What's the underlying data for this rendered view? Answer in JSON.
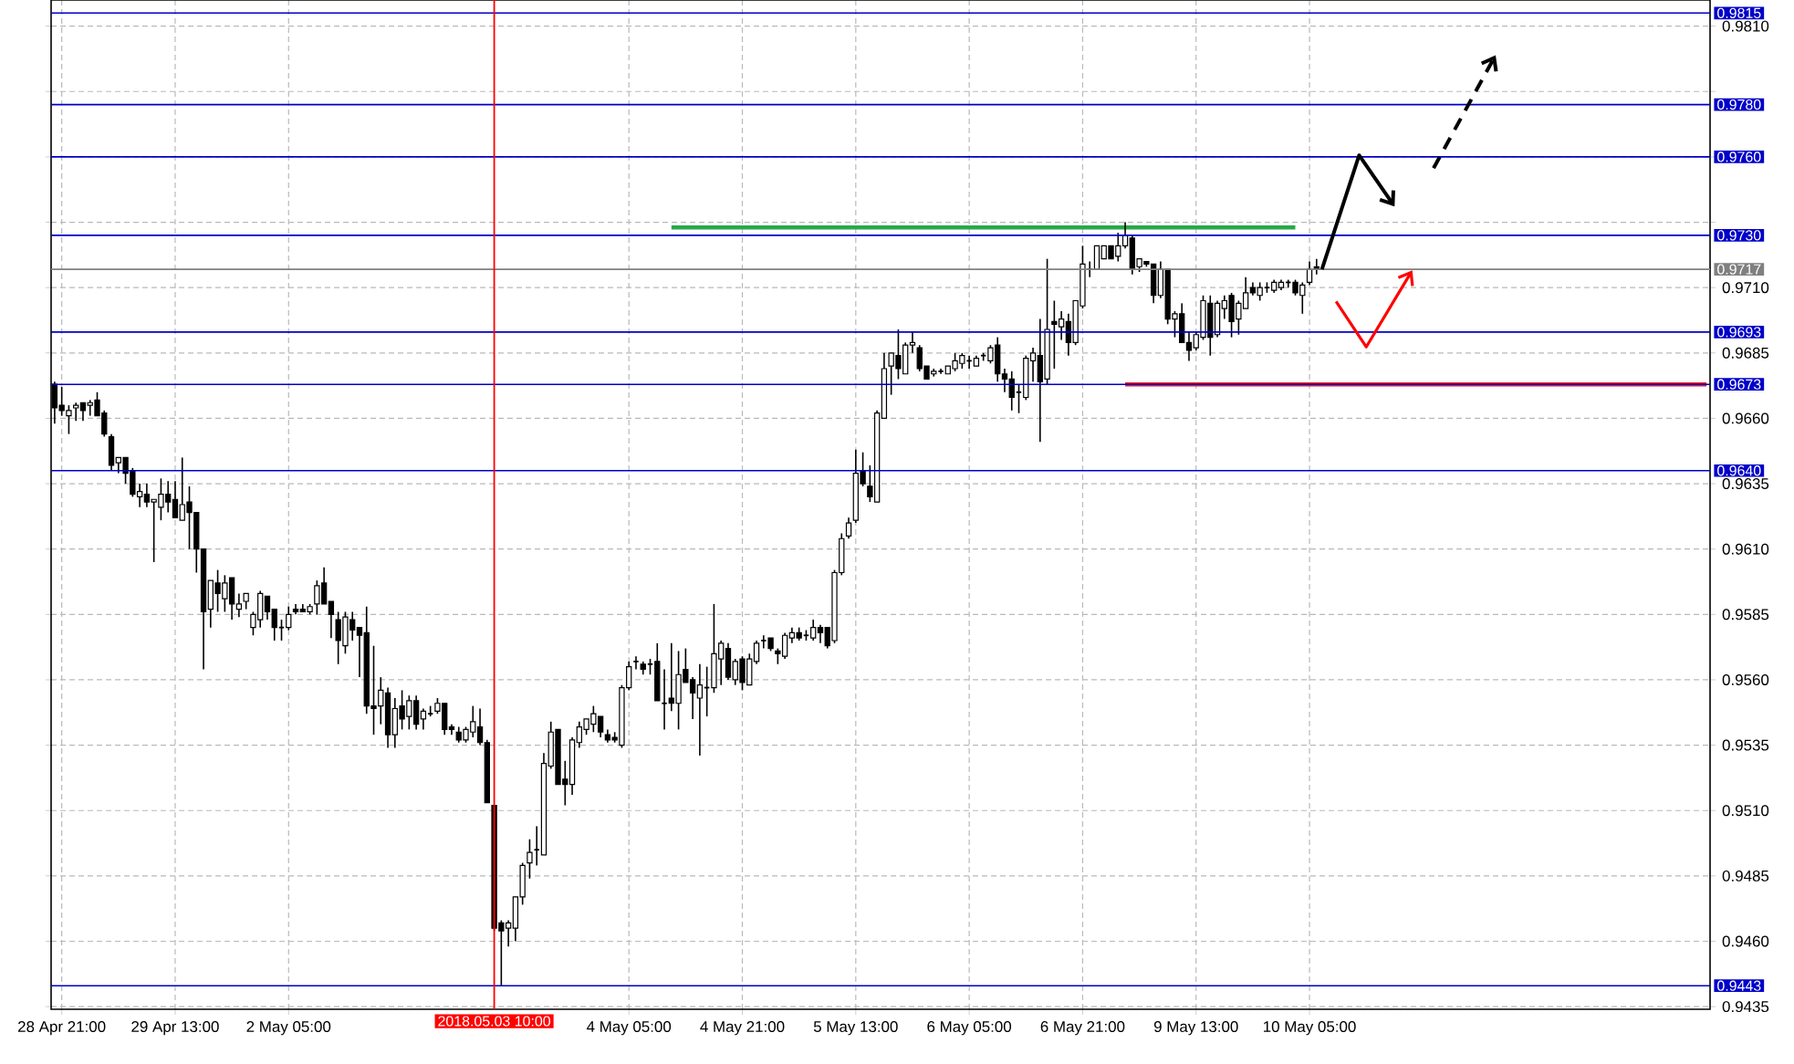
{
  "chart_data": {
    "type": "candlestick",
    "color": "#000000",
    "categories": [
      null,
      "28 Apr 21:00",
      null,
      null,
      null,
      null,
      null,
      null,
      null,
      null,
      null,
      null,
      null,
      null,
      null,
      null,
      null,
      "29 Apr 13:00",
      null,
      null,
      null,
      null,
      null,
      null,
      null,
      null,
      null,
      null,
      null,
      null,
      null,
      null,
      null,
      "2 May 05:00",
      null,
      null,
      null,
      null,
      null,
      null,
      null,
      null,
      null,
      null,
      null,
      null,
      null,
      null,
      null,
      null,
      null,
      null,
      null,
      null,
      null,
      null,
      null,
      null,
      null,
      null,
      null,
      null,
      "2018.05.03 10:00",
      null,
      null,
      null,
      null,
      null,
      null,
      null,
      null,
      null,
      null,
      null,
      null,
      null,
      null,
      null,
      null,
      null,
      null,
      "4 May 05:00",
      null,
      null,
      null,
      null,
      null,
      null,
      null,
      null,
      null,
      null,
      null,
      null,
      null,
      null,
      null,
      "4 May 21:00",
      null,
      null,
      null,
      null,
      null,
      null,
      null,
      null,
      null,
      null,
      null,
      null,
      null,
      null,
      null,
      "5 May 13:00",
      null,
      null,
      null,
      null,
      null,
      null,
      null,
      null,
      null,
      null,
      null,
      null,
      null,
      null,
      null,
      "6 May 05:00",
      null,
      null,
      null,
      null,
      null,
      null,
      null,
      null,
      null,
      null,
      null,
      null,
      null,
      null,
      null,
      "6 May 21:00",
      null,
      null,
      null,
      null,
      null,
      null,
      null,
      null,
      null,
      null,
      null,
      null,
      null,
      null,
      null,
      "9 May 13:00",
      null,
      null,
      null,
      null,
      null,
      null,
      null,
      null,
      null,
      null,
      null,
      null,
      null,
      null,
      null,
      "10 May 05:00",
      null,
      null,
      null,
      null,
      null,
      null,
      null,
      null,
      null,
      null,
      null,
      null,
      null,
      null,
      null,
      null,
      null,
      null,
      null,
      null,
      null,
      null,
      null,
      null,
      null,
      null,
      null,
      null,
      null,
      null,
      null,
      null,
      null,
      null,
      null,
      null,
      null,
      null,
      null,
      null,
      null,
      null,
      null,
      null,
      null,
      null,
      null,
      null,
      null,
      null,
      null,
      null,
      null,
      null,
      null,
      null
    ],
    "ohlc": [
      [
        0.9673,
        0.9674,
        0.9658,
        0.9664
      ],
      [
        0.9665,
        0.9672,
        0.9661,
        0.9663
      ],
      [
        0.9661,
        0.9665,
        0.9654,
        0.9663
      ],
      [
        0.9664,
        0.9666,
        0.9659,
        0.9665
      ],
      [
        0.9666,
        0.9666,
        0.9659,
        0.9663
      ],
      [
        0.9665,
        0.9667,
        0.9661,
        0.9666
      ],
      [
        0.9667,
        0.967,
        0.9661,
        0.9661
      ],
      [
        0.9662,
        0.9663,
        0.9653,
        0.9654
      ],
      [
        0.9653,
        0.9654,
        0.964,
        0.9642
      ],
      [
        0.9643,
        0.9645,
        0.9639,
        0.9645
      ],
      [
        0.9645,
        0.9645,
        0.9635,
        0.9639
      ],
      [
        0.964,
        0.9641,
        0.963,
        0.9631
      ],
      [
        0.963,
        0.9635,
        0.9626,
        0.9632
      ],
      [
        0.9631,
        0.9635,
        0.9626,
        0.9628
      ],
      [
        0.9628,
        0.9629,
        0.9605,
        0.9629
      ],
      [
        0.9626,
        0.9637,
        0.9621,
        0.9631
      ],
      [
        0.9631,
        0.9636,
        0.9624,
        0.9628
      ],
      [
        0.9629,
        0.9636,
        0.9622,
        0.9622
      ],
      [
        0.9621,
        0.9645,
        0.9621,
        0.9627
      ],
      [
        0.9628,
        0.9634,
        0.961,
        0.9624
      ],
      [
        0.9624,
        0.9624,
        0.9601,
        0.961
      ],
      [
        0.961,
        0.961,
        0.9564,
        0.9586
      ],
      [
        0.9587,
        0.9598,
        0.958,
        0.9598
      ],
      [
        0.9597,
        0.9602,
        0.9586,
        0.9593
      ],
      [
        0.9591,
        0.96,
        0.9586,
        0.9597
      ],
      [
        0.9599,
        0.9599,
        0.9583,
        0.9589
      ],
      [
        0.9587,
        0.9593,
        0.9584,
        0.9589
      ],
      [
        0.959,
        0.9593,
        0.9587,
        0.9593
      ],
      [
        0.958,
        0.9586,
        0.9577,
        0.9585
      ],
      [
        0.9583,
        0.9594,
        0.958,
        0.9593
      ],
      [
        0.9592,
        0.9592,
        0.9583,
        0.9586
      ],
      [
        0.9587,
        0.9587,
        0.9575,
        0.958
      ],
      [
        0.958,
        0.9583,
        0.9575,
        0.958
      ],
      [
        0.958,
        0.9588,
        0.9579,
        0.9585
      ],
      [
        0.9587,
        0.9589,
        0.9585,
        0.9586
      ],
      [
        0.9587,
        0.9589,
        0.9586,
        0.9586
      ],
      [
        0.9586,
        0.9589,
        0.9585,
        0.9588
      ],
      [
        0.9589,
        0.9598,
        0.9585,
        0.9596
      ],
      [
        0.9597,
        0.9603,
        0.9589,
        0.9589
      ],
      [
        0.959,
        0.959,
        0.9576,
        0.9585
      ],
      [
        0.9583,
        0.9586,
        0.9566,
        0.9575
      ],
      [
        0.9573,
        0.9586,
        0.957,
        0.9584
      ],
      [
        0.9583,
        0.9586,
        0.9575,
        0.9579
      ],
      [
        0.958,
        0.958,
        0.9561,
        0.9577
      ],
      [
        0.9578,
        0.9588,
        0.9547,
        0.955
      ],
      [
        0.955,
        0.9573,
        0.9539,
        0.9549
      ],
      [
        0.955,
        0.9561,
        0.9543,
        0.9556
      ],
      [
        0.9555,
        0.9557,
        0.9534,
        0.9539
      ],
      [
        0.9539,
        0.9553,
        0.9534,
        0.9549
      ],
      [
        0.955,
        0.9556,
        0.9541,
        0.9545
      ],
      [
        0.9546,
        0.9554,
        0.9541,
        0.9552
      ],
      [
        0.9552,
        0.9554,
        0.9541,
        0.9543
      ],
      [
        0.9545,
        0.9549,
        0.9541,
        0.9548
      ],
      [
        0.9547,
        0.955,
        0.9546,
        0.9547
      ],
      [
        0.9548,
        0.9553,
        0.9547,
        0.9551
      ],
      [
        0.9551,
        0.9551,
        0.9539,
        0.9541
      ],
      [
        0.9542,
        0.9543,
        0.9539,
        0.9541
      ],
      [
        0.954,
        0.9542,
        0.9536,
        0.9537
      ],
      [
        0.9537,
        0.9542,
        0.9536,
        0.9541
      ],
      [
        0.954,
        0.955,
        0.9538,
        0.9544
      ],
      [
        0.9542,
        0.9549,
        0.9535,
        0.9536
      ],
      [
        0.9536,
        0.9537,
        0.9513,
        0.9513
      ],
      [
        0.9512,
        0.9512,
        0.9464,
        0.9465
      ],
      [
        0.9467,
        0.9468,
        0.9443,
        0.9464
      ],
      [
        0.9465,
        0.9468,
        0.9458,
        0.9467
      ],
      [
        0.9465,
        0.9477,
        0.946,
        0.9477
      ],
      [
        0.9477,
        0.949,
        0.9474,
        0.9489
      ],
      [
        0.949,
        0.9499,
        0.9484,
        0.9494
      ],
      [
        0.9495,
        0.9504,
        0.9489,
        0.9495
      ],
      [
        0.9493,
        0.9532,
        0.9493,
        0.9528
      ],
      [
        0.9527,
        0.9544,
        0.9526,
        0.954
      ],
      [
        0.9541,
        0.9541,
        0.952,
        0.952
      ],
      [
        0.9522,
        0.9529,
        0.9512,
        0.952
      ],
      [
        0.952,
        0.9538,
        0.9516,
        0.9537
      ],
      [
        0.9536,
        0.9544,
        0.9534,
        0.9542
      ],
      [
        0.9541,
        0.9545,
        0.9539,
        0.9545
      ],
      [
        0.9543,
        0.955,
        0.954,
        0.9547
      ],
      [
        0.9546,
        0.9546,
        0.9538,
        0.954
      ],
      [
        0.9539,
        0.9541,
        0.9536,
        0.9537
      ],
      [
        0.9538,
        0.954,
        0.9536,
        0.9537
      ],
      [
        0.9535,
        0.9558,
        0.9534,
        0.9557
      ],
      [
        0.9557,
        0.9567,
        0.9556,
        0.9565
      ],
      [
        0.9567,
        0.9569,
        0.9564,
        0.9567
      ],
      [
        0.9566,
        0.9567,
        0.9562,
        0.9564
      ],
      [
        0.9566,
        0.9568,
        0.9562,
        0.9566
      ],
      [
        0.9567,
        0.9574,
        0.9552,
        0.9552
      ],
      [
        0.9551,
        0.9564,
        0.9541,
        0.9551
      ],
      [
        0.9553,
        0.9574,
        0.9548,
        0.9551
      ],
      [
        0.9551,
        0.9571,
        0.9541,
        0.9562
      ],
      [
        0.9564,
        0.9572,
        0.9559,
        0.9559
      ],
      [
        0.956,
        0.9561,
        0.9545,
        0.9555
      ],
      [
        0.9553,
        0.9566,
        0.9531,
        0.9558
      ],
      [
        0.9557,
        0.9565,
        0.9546,
        0.9557
      ],
      [
        0.9557,
        0.9589,
        0.9555,
        0.957
      ],
      [
        0.9568,
        0.9575,
        0.9558,
        0.9574
      ],
      [
        0.9572,
        0.9574,
        0.956,
        0.9561
      ],
      [
        0.956,
        0.9568,
        0.9558,
        0.9567
      ],
      [
        0.9568,
        0.9569,
        0.9556,
        0.9559
      ],
      [
        0.9558,
        0.957,
        0.9558,
        0.9568
      ],
      [
        0.9567,
        0.9575,
        0.9566,
        0.9574
      ],
      [
        0.9575,
        0.9577,
        0.9572,
        0.9575
      ],
      [
        0.9576,
        0.9576,
        0.9571,
        0.9572
      ],
      [
        0.9571,
        0.9572,
        0.9566,
        0.957
      ],
      [
        0.9569,
        0.9578,
        0.9568,
        0.9577
      ],
      [
        0.9576,
        0.958,
        0.9574,
        0.9578
      ],
      [
        0.9578,
        0.958,
        0.9575,
        0.9576
      ],
      [
        0.9577,
        0.9579,
        0.9575,
        0.9577
      ],
      [
        0.9576,
        0.9583,
        0.9575,
        0.958
      ],
      [
        0.958,
        0.9581,
        0.9574,
        0.9578
      ],
      [
        0.958,
        0.958,
        0.9572,
        0.9573
      ],
      [
        0.9575,
        0.9602,
        0.9574,
        0.9601
      ],
      [
        0.9601,
        0.9616,
        0.96,
        0.9614
      ],
      [
        0.9615,
        0.9622,
        0.9614,
        0.962
      ],
      [
        0.9621,
        0.9648,
        0.962,
        0.9639
      ],
      [
        0.964,
        0.9647,
        0.9634,
        0.9635
      ],
      [
        0.9634,
        0.9642,
        0.9628,
        0.963
      ],
      [
        0.9628,
        0.9663,
        0.9628,
        0.9662
      ],
      [
        0.966,
        0.9685,
        0.966,
        0.9679
      ],
      [
        0.968,
        0.9685,
        0.9669,
        0.9685
      ],
      [
        0.9684,
        0.9694,
        0.9675,
        0.9679
      ],
      [
        0.9677,
        0.9689,
        0.9677,
        0.9688
      ],
      [
        0.9688,
        0.9693,
        0.9685,
        0.9689
      ],
      [
        0.9687,
        0.9688,
        0.9678,
        0.9679
      ],
      [
        0.968,
        0.968,
        0.9675,
        0.9675
      ],
      [
        0.9677,
        0.9679,
        0.9676,
        0.9678
      ],
      [
        0.9678,
        0.9679,
        0.9677,
        0.9678
      ],
      [
        0.9677,
        0.968,
        0.9677,
        0.968
      ],
      [
        0.9679,
        0.9685,
        0.9678,
        0.9682
      ],
      [
        0.9681,
        0.9685,
        0.9679,
        0.9684
      ],
      [
        0.9682,
        0.9684,
        0.9679,
        0.9682
      ],
      [
        0.968,
        0.9684,
        0.968,
        0.9683
      ],
      [
        0.9684,
        0.9685,
        0.9682,
        0.9684
      ],
      [
        0.9682,
        0.9688,
        0.9681,
        0.9687
      ],
      [
        0.9688,
        0.9691,
        0.9674,
        0.9677
      ],
      [
        0.9677,
        0.9679,
        0.967,
        0.9675
      ],
      [
        0.9675,
        0.9678,
        0.9663,
        0.9668
      ],
      [
        0.967,
        0.9673,
        0.9662,
        0.967
      ],
      [
        0.9668,
        0.9684,
        0.9667,
        0.9683
      ],
      [
        0.9682,
        0.9687,
        0.9674,
        0.9685
      ],
      [
        0.9684,
        0.9698,
        0.9651,
        0.9674
      ],
      [
        0.9675,
        0.9721,
        0.9673,
        0.9694
      ],
      [
        0.9697,
        0.9705,
        0.9679,
        0.9696
      ],
      [
        0.9695,
        0.9701,
        0.969,
        0.9698
      ],
      [
        0.9697,
        0.97,
        0.9684,
        0.9689
      ],
      [
        0.9689,
        0.9705,
        0.9688,
        0.9705
      ],
      [
        0.9703,
        0.9726,
        0.9702,
        0.9719
      ],
      [
        0.9717,
        0.972,
        0.9714,
        0.9717
      ],
      [
        0.9717,
        0.9726,
        0.9717,
        0.9726
      ],
      [
        0.9721,
        0.9726,
        0.9721,
        0.9726
      ],
      [
        0.9726,
        0.9726,
        0.9721,
        0.9721
      ],
      [
        0.9722,
        0.9731,
        0.972,
        0.9726
      ],
      [
        0.9726,
        0.9735,
        0.9725,
        0.973
      ],
      [
        0.9729,
        0.973,
        0.9715,
        0.9717
      ],
      [
        0.9718,
        0.9721,
        0.9716,
        0.9721
      ],
      [
        0.972,
        0.972,
        0.9718,
        0.9719
      ],
      [
        0.9719,
        0.9719,
        0.9704,
        0.9707
      ],
      [
        0.9707,
        0.972,
        0.9706,
        0.9717
      ],
      [
        0.9717,
        0.9717,
        0.9696,
        0.9698
      ],
      [
        0.9698,
        0.9701,
        0.9691,
        0.97
      ],
      [
        0.97,
        0.9704,
        0.9689,
        0.9689
      ],
      [
        0.9689,
        0.9693,
        0.9682,
        0.9686
      ],
      [
        0.9687,
        0.9693,
        0.9686,
        0.9692
      ],
      [
        0.9691,
        0.9707,
        0.969,
        0.9705
      ],
      [
        0.9704,
        0.9707,
        0.9684,
        0.9691
      ],
      [
        0.9692,
        0.9705,
        0.9691,
        0.9704
      ],
      [
        0.9702,
        0.9707,
        0.9698,
        0.9705
      ],
      [
        0.9707,
        0.9708,
        0.9691,
        0.9697
      ],
      [
        0.9698,
        0.9705,
        0.9692,
        0.9704
      ],
      [
        0.9702,
        0.9714,
        0.9702,
        0.9708
      ],
      [
        0.971,
        0.9712,
        0.9707,
        0.9708
      ],
      [
        0.9707,
        0.9712,
        0.9705,
        0.971
      ],
      [
        0.971,
        0.9712,
        0.9708,
        0.971
      ],
      [
        0.9709,
        0.9713,
        0.9708,
        0.9712
      ],
      [
        0.971,
        0.9713,
        0.9709,
        0.9712
      ],
      [
        0.9712,
        0.9713,
        0.971,
        0.9712
      ],
      [
        0.9712,
        0.9713,
        0.9707,
        0.9708
      ],
      [
        0.9707,
        0.9712,
        0.97,
        0.9711
      ],
      [
        0.9712,
        0.972,
        0.9711,
        0.9717
      ],
      [
        0.9718,
        0.9721,
        0.9715,
        0.9717
      ],
      null,
      null,
      null,
      null,
      null,
      null,
      null,
      null,
      null,
      null,
      null,
      null,
      null,
      null,
      null,
      null,
      null,
      null,
      null,
      null,
      null,
      null,
      null,
      null,
      null,
      null,
      null,
      null,
      null,
      null,
      null,
      null,
      null,
      null,
      null,
      null,
      null,
      null,
      null,
      null,
      null,
      null,
      null,
      null,
      null,
      null,
      null,
      null,
      null,
      null,
      null,
      null,
      null,
      null,
      null
    ],
    "series": [
      {
        "type": "line",
        "color": "#2aa84a",
        "values": [
          null,
          null,
          null,
          null,
          null,
          null,
          null,
          null,
          null,
          null,
          null,
          null,
          null,
          null,
          null,
          null,
          null,
          null,
          null,
          null,
          null,
          null,
          null,
          null,
          null,
          null,
          null,
          null,
          null,
          null,
          null,
          null,
          null,
          null,
          null,
          null,
          null,
          null,
          null,
          null,
          null,
          null,
          null,
          null,
          null,
          null,
          null,
          null,
          null,
          null,
          null,
          null,
          null,
          null,
          null,
          null,
          null,
          null,
          null,
          null,
          null,
          null,
          null,
          null,
          null,
          null,
          null,
          null,
          null,
          null,
          null,
          null,
          null,
          null,
          null,
          null,
          null,
          null,
          null,
          null,
          null,
          null,
          null,
          null,
          null,
          null,
          null,
          0.9733,
          0.9733,
          0.9733,
          0.9733,
          0.9733,
          0.9733,
          0.9733,
          0.9733,
          0.9733,
          0.9733,
          0.9733,
          0.9733,
          0.9733,
          0.9733,
          0.9733,
          0.9733,
          0.9733,
          0.9733,
          0.9733,
          0.9733,
          0.9733,
          0.9733,
          0.9733,
          0.9733,
          0.9733,
          0.9733,
          0.9733,
          0.9733,
          0.9733,
          0.9733,
          0.9733,
          0.9733,
          0.9733,
          0.9733,
          0.9733,
          0.9733,
          0.9733,
          0.9733,
          0.9733,
          0.9733,
          0.9733,
          0.9733,
          0.9733,
          0.9733,
          0.9733,
          0.9733,
          0.9733,
          0.9733,
          0.9733,
          0.9733,
          0.9733,
          0.9733,
          0.9733,
          0.9733,
          0.9733,
          0.9733,
          0.9733,
          0.9733,
          0.9733,
          0.9733,
          0.9733,
          0.9733,
          0.9733,
          0.9733,
          0.9733,
          0.9733,
          0.9733,
          0.9733,
          0.9733,
          0.9733,
          0.9733,
          0.9733,
          0.9733,
          0.9733,
          0.9733,
          0.9733,
          0.9733,
          0.9733,
          0.9733,
          0.9733,
          0.9733,
          0.9733,
          0.9733,
          0.9733,
          0.9733,
          0.9733,
          0.9733,
          0.9733,
          0.9733,
          null,
          null,
          null,
          null,
          null,
          null,
          null,
          null,
          null,
          null,
          null,
          null,
          null,
          null,
          null,
          null,
          null,
          null,
          null,
          null,
          null,
          null,
          null,
          null,
          null,
          null,
          null,
          null,
          null,
          null,
          null,
          null,
          null,
          null,
          null,
          null,
          null,
          null,
          null,
          null,
          null,
          null,
          null,
          null,
          null,
          null,
          null,
          null,
          null,
          null,
          null,
          null,
          null,
          null,
          null,
          null,
          null,
          null
        ]
      },
      {
        "type": "line",
        "color": "#e51d1d",
        "values": [
          null,
          null,
          null,
          null,
          null,
          null,
          null,
          null,
          null,
          null,
          null,
          null,
          null,
          null,
          null,
          null,
          null,
          null,
          null,
          null,
          null,
          null,
          null,
          null,
          null,
          null,
          null,
          null,
          null,
          null,
          null,
          null,
          null,
          null,
          null,
          null,
          null,
          null,
          null,
          null,
          null,
          null,
          null,
          null,
          null,
          null,
          null,
          null,
          null,
          null,
          null,
          null,
          null,
          null,
          null,
          null,
          null,
          null,
          null,
          null,
          null,
          null,
          null,
          null,
          null,
          null,
          null,
          null,
          null,
          null,
          null,
          null,
          null,
          null,
          null,
          null,
          null,
          null,
          null,
          null,
          null,
          null,
          null,
          null,
          null,
          null,
          null,
          null,
          null,
          null,
          null,
          null,
          null,
          null,
          null,
          null,
          null,
          null,
          null,
          null,
          null,
          null,
          null,
          null,
          null,
          null,
          null,
          null,
          null,
          null,
          null,
          null,
          null,
          null,
          null,
          null,
          null,
          null,
          null,
          null,
          null,
          null,
          null,
          null,
          null,
          null,
          null,
          null,
          null,
          null,
          null,
          null,
          null,
          null,
          null,
          null,
          null,
          null,
          null,
          null,
          null,
          null,
          null,
          null,
          null,
          null,
          null,
          null,
          null,
          null,
          null,
          0.9673,
          0.9673,
          0.9673,
          0.9673,
          0.9673,
          0.9673,
          0.9673,
          0.9673,
          0.9673,
          0.9673,
          0.9673,
          0.9673,
          0.9673,
          0.9673,
          0.9673,
          0.9673,
          0.9673,
          0.9673,
          0.9673,
          0.9673,
          0.9673,
          0.9673,
          0.9673,
          0.9673,
          0.9673,
          0.9673,
          0.9673,
          0.9673,
          0.9673,
          0.9673,
          0.9673,
          0.9673,
          0.9673,
          0.9673,
          0.9673,
          0.9673,
          0.9673,
          0.9673,
          0.9673,
          0.9673,
          0.9673,
          0.9673,
          0.9673,
          0.9673,
          0.9673,
          0.9673,
          0.9673,
          0.9673,
          0.9673,
          0.9673,
          0.9673,
          0.9673,
          0.9673,
          0.9673,
          0.9673,
          0.9673,
          0.9673,
          0.9673,
          0.9673,
          0.9673,
          0.9673,
          0.9673,
          0.9673,
          0.9673,
          0.9673,
          0.9673,
          0.9673,
          0.9673,
          0.9673,
          0.9673,
          0.9673,
          0.9673,
          0.9673,
          0.9673,
          0.9673,
          0.9673,
          0.9673,
          0.9673,
          0.9673,
          0.9673,
          0.9673,
          0.9673,
          0.9673
        ]
      }
    ],
    "ylim": [
      0.9434,
      0.982
    ],
    "yticks": [
      {
        "value": 0.9435,
        "label": "0.9435"
      },
      {
        "value": 0.946,
        "label": "0.9460"
      },
      {
        "value": 0.9485,
        "label": "0.9485"
      },
      {
        "value": 0.951,
        "label": "0.9510"
      },
      {
        "value": 0.9535,
        "label": "0.9535"
      },
      {
        "value": 0.956,
        "label": "0.9560"
      },
      {
        "value": 0.9585,
        "label": "0.9585"
      },
      {
        "value": 0.961,
        "label": "0.9610"
      },
      {
        "value": 0.9635,
        "label": "0.9635"
      },
      {
        "value": 0.966,
        "label": "0.9660"
      },
      {
        "value": 0.9685,
        "label": "0.9685"
      },
      {
        "value": 0.971,
        "label": "0.9710"
      },
      {
        "value": 0.9735,
        "label": null
      },
      {
        "value": 0.976,
        "label": null
      },
      {
        "value": 0.9785,
        "label": null
      },
      {
        "value": 0.981,
        "label": "0.9810"
      }
    ],
    "ref_lines": [
      {
        "axis": "y",
        "value": 0.9815,
        "label": "0.9815",
        "color": "#0000c8"
      },
      {
        "axis": "y",
        "value": 0.978,
        "label": "0.9780",
        "color": "#0000c8"
      },
      {
        "axis": "y",
        "value": 0.976,
        "label": "0.9760",
        "color": "#0000c8"
      },
      {
        "axis": "y",
        "value": 0.973,
        "label": "0.9730",
        "color": "#0000c8"
      },
      {
        "axis": "y",
        "value": 0.9717,
        "label": "0.9717",
        "color": "#808080"
      },
      {
        "axis": "y",
        "value": 0.9693,
        "label": "0.9693",
        "color": "#0000c8"
      },
      {
        "axis": "y",
        "value": 0.9673,
        "label": "0.9673",
        "color": "#0000c8"
      },
      {
        "axis": "y",
        "value": 0.964,
        "label": "0.9640",
        "color": "#0000c8"
      },
      {
        "axis": "y",
        "value": 0.9443,
        "label": "0.9443",
        "color": "#0000c8"
      },
      {
        "axis": "x",
        "value": "2018.05.03 10:00",
        "color": "#ff0000"
      }
    ],
    "grid": true
  }
}
